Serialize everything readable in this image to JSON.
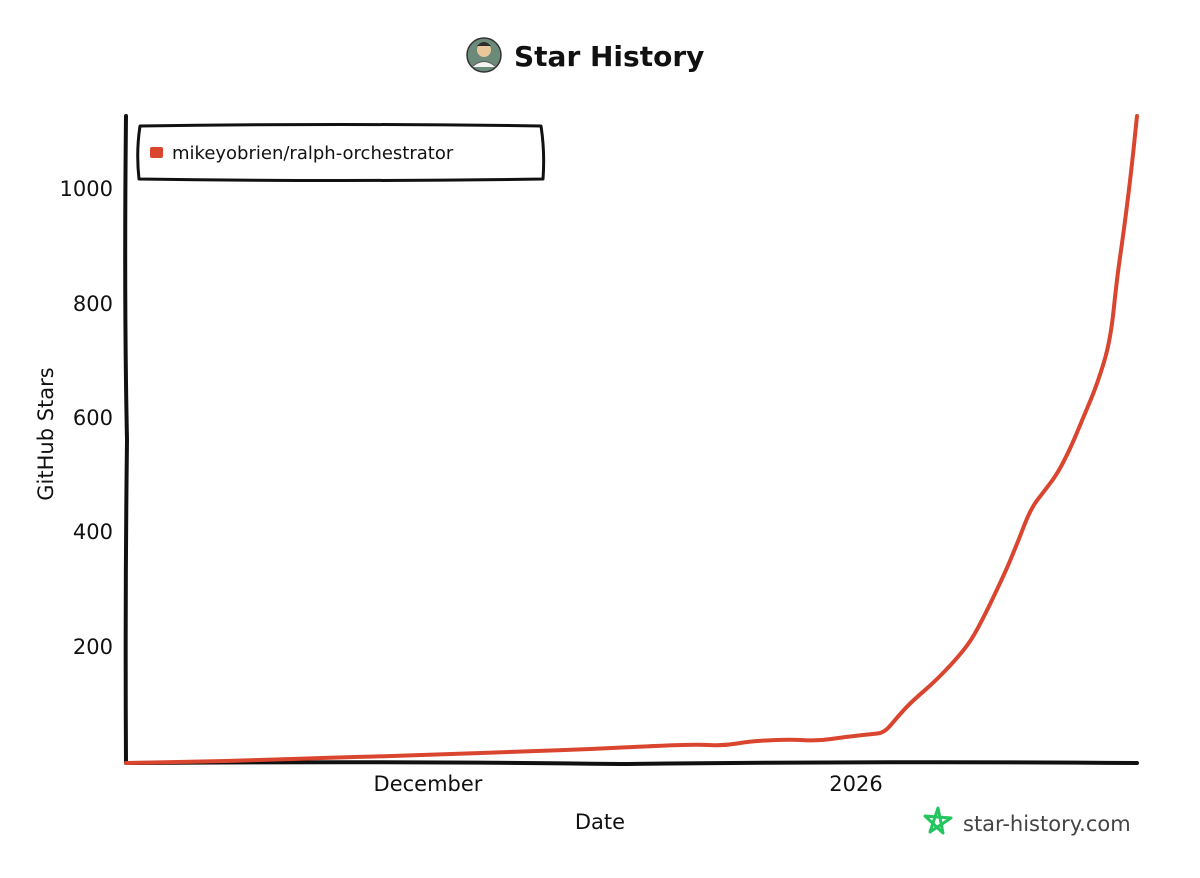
{
  "chart_data": {
    "type": "line",
    "title": "Star History",
    "xlabel": "Date",
    "ylabel": "GitHub Stars",
    "x_ticks": [
      "December",
      "2026"
    ],
    "y_ticks": [
      200,
      400,
      600,
      800,
      1000
    ],
    "ylim": [
      0,
      1120
    ],
    "xlim": [
      "2025-11-05",
      "2026-01-20"
    ],
    "grid": false,
    "legend_position": "top-left",
    "series": [
      {
        "name": "mikeyobrien/ralph-orchestrator",
        "color": "#d9452f",
        "points": [
          [
            "2025-11-05",
            0
          ],
          [
            "2025-11-10",
            2
          ],
          [
            "2025-11-15",
            5
          ],
          [
            "2025-11-20",
            9
          ],
          [
            "2025-11-25",
            12
          ],
          [
            "2025-11-30",
            16
          ],
          [
            "2025-12-05",
            20
          ],
          [
            "2025-12-10",
            24
          ],
          [
            "2025-12-15",
            30
          ],
          [
            "2025-12-18",
            32
          ],
          [
            "2025-12-20",
            30
          ],
          [
            "2025-12-22",
            38
          ],
          [
            "2025-12-25",
            41
          ],
          [
            "2025-12-27",
            38
          ],
          [
            "2025-12-29",
            45
          ],
          [
            "2025-12-31",
            50
          ],
          [
            "2026-01-01",
            52
          ],
          [
            "2026-01-02",
            80
          ],
          [
            "2026-01-03",
            105
          ],
          [
            "2026-01-05",
            145
          ],
          [
            "2026-01-07",
            195
          ],
          [
            "2026-01-08",
            230
          ],
          [
            "2026-01-10",
            325
          ],
          [
            "2026-01-11",
            380
          ],
          [
            "2026-01-12",
            440
          ],
          [
            "2026-01-13",
            470
          ],
          [
            "2026-01-14",
            500
          ],
          [
            "2026-01-15",
            545
          ],
          [
            "2026-01-16",
            600
          ],
          [
            "2026-01-17",
            655
          ],
          [
            "2026-01-18",
            730
          ],
          [
            "2026-01-18T12",
            840
          ],
          [
            "2026-01-19",
            920
          ],
          [
            "2026-01-19T12",
            1010
          ],
          [
            "2026-01-20",
            1120
          ]
        ]
      }
    ]
  },
  "branding": {
    "text": "star-history.com",
    "logo_color": "#22c55e"
  },
  "avatar_icon": "avatar-icon"
}
